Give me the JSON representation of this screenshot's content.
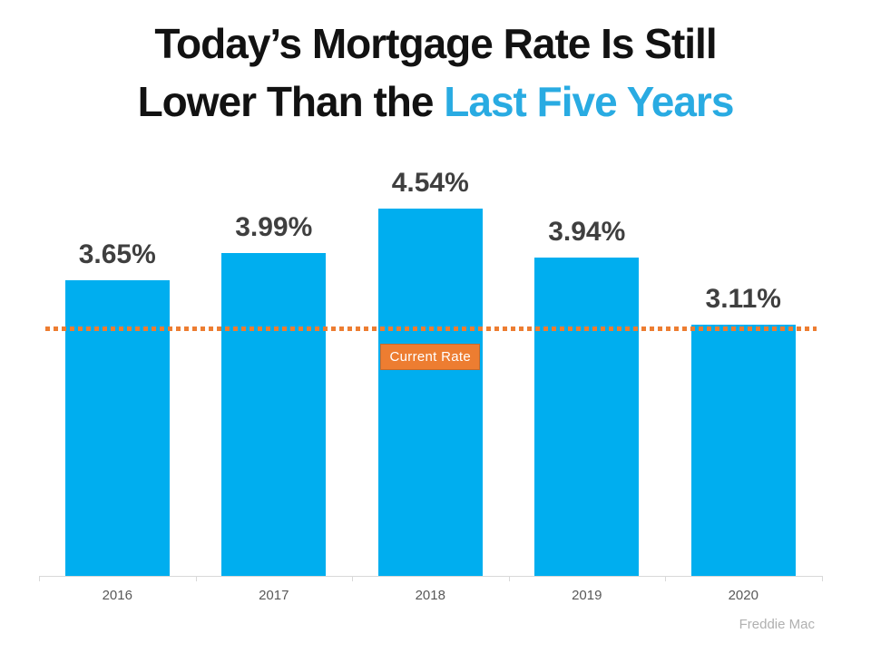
{
  "title": {
    "line1": "Today’s Mortgage Rate Is Still",
    "line2_prefix": "Lower Than the ",
    "line2_accent": "Last Five Years",
    "text_color": "#121212",
    "accent_color": "#29ABE2"
  },
  "chart_data": {
    "type": "bar",
    "categories": [
      "2016",
      "2017",
      "2018",
      "2019",
      "2020"
    ],
    "values": [
      3.65,
      3.99,
      4.54,
      3.94,
      3.11
    ],
    "value_labels": [
      "3.65%",
      "3.99%",
      "4.54%",
      "3.94%",
      "3.11%"
    ],
    "title": "Today’s Mortgage Rate Is Still Lower Than the Last Five Years",
    "xlabel": "",
    "ylabel": "",
    "ylim": [
      0,
      4.54
    ],
    "grid": false,
    "legend": false,
    "bar_color": "#00AEEF",
    "value_label_color": "#3F3F3F",
    "category_label_color": "#595959",
    "axis_color": "#D9D9D9",
    "reference_line": {
      "value": 3.06,
      "label": "Current Rate",
      "line_color": "#ED7D31",
      "label_bg_color": "#ED7D31",
      "label_text_color": "#FFFFFF"
    }
  },
  "source": {
    "label": "Freddie Mac",
    "color": "#B0B0B0"
  }
}
